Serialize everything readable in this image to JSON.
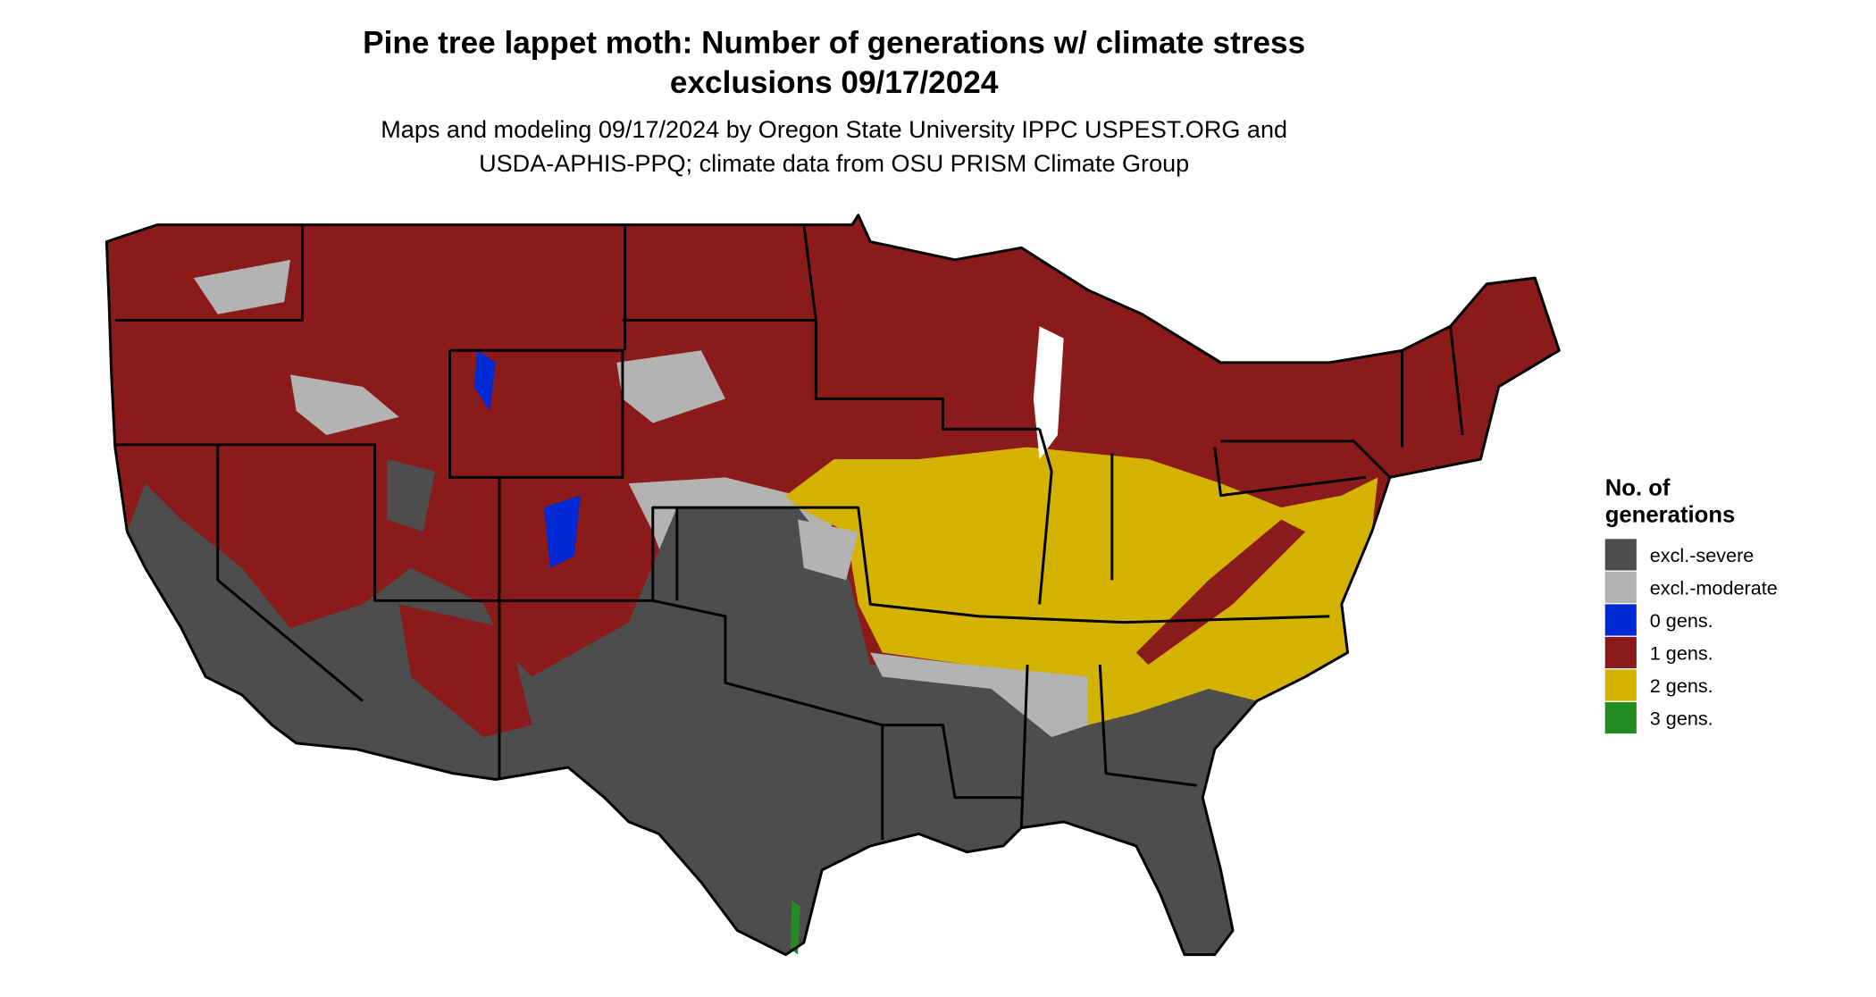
{
  "title": [
    "Pine tree lappet moth: Number of generations w/ climate stress",
    "exclusions 09/17/2024"
  ],
  "subtitle": [
    "Maps and modeling 09/17/2024 by Oregon State University IPPC USPEST.ORG and",
    "USDA-APHIS-PPQ; climate data from OSU PRISM Climate Group"
  ],
  "legend": {
    "title": [
      "No. of",
      "generations"
    ],
    "items": [
      {
        "label": "excl.-severe",
        "color": "#4d4d4d"
      },
      {
        "label": "excl.-moderate",
        "color": "#b3b3b3"
      },
      {
        "label": "0 gens.",
        "color": "#0029d6"
      },
      {
        "label": "1 gens.",
        "color": "#8b1a1a"
      },
      {
        "label": "2 gens.",
        "color": "#d4b300"
      },
      {
        "label": "3 gens.",
        "color": "#228b22"
      }
    ]
  }
}
